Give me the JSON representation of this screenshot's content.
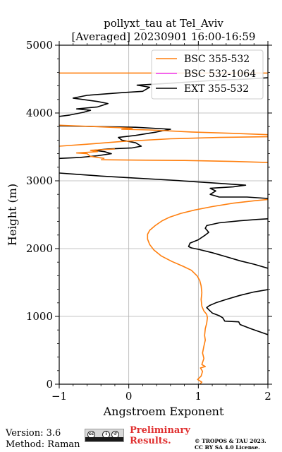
{
  "chart_data": {
    "type": "line",
    "title_line1": "pollyxt_tau at Tel_Aviv",
    "title_line2": "[Averaged] 20230901 16:00-16:59",
    "xlabel": "Angstroem Exponent",
    "ylabel": "Height (m)",
    "xlim": [
      -1,
      2
    ],
    "ylim": [
      0,
      5000
    ],
    "xticks": [
      "−1",
      "0",
      "1",
      "2"
    ],
    "yticks": [
      "0",
      "1000",
      "2000",
      "3000",
      "4000",
      "5000"
    ],
    "grid": true,
    "legend_position": "top-right",
    "series": [
      {
        "name": "BSC 355-532",
        "color": "#ff7f0e",
        "points": [
          [
            1.02,
            0
          ],
          [
            1.05,
            30
          ],
          [
            0.99,
            70
          ],
          [
            1.04,
            120
          ],
          [
            1.06,
            190
          ],
          [
            1.03,
            240
          ],
          [
            1.1,
            260
          ],
          [
            1.05,
            290
          ],
          [
            1.08,
            380
          ],
          [
            1.06,
            460
          ],
          [
            1.08,
            560
          ],
          [
            1.1,
            650
          ],
          [
            1.09,
            720
          ],
          [
            1.1,
            820
          ],
          [
            1.12,
            900
          ],
          [
            1.13,
            980
          ],
          [
            1.12,
            1030
          ],
          [
            1.08,
            1080
          ],
          [
            1.05,
            1150
          ],
          [
            1.04,
            1250
          ],
          [
            1.05,
            1350
          ],
          [
            1.04,
            1450
          ],
          [
            1.02,
            1530
          ],
          [
            0.98,
            1600
          ],
          [
            0.9,
            1680
          ],
          [
            0.78,
            1740
          ],
          [
            0.62,
            1810
          ],
          [
            0.47,
            1890
          ],
          [
            0.36,
            1980
          ],
          [
            0.3,
            2060
          ],
          [
            0.27,
            2140
          ],
          [
            0.27,
            2210
          ],
          [
            0.3,
            2270
          ],
          [
            0.38,
            2340
          ],
          [
            0.48,
            2410
          ],
          [
            0.58,
            2460
          ],
          [
            0.75,
            2520
          ],
          [
            0.95,
            2570
          ],
          [
            1.2,
            2620
          ],
          [
            1.5,
            2670
          ],
          [
            1.8,
            2705
          ],
          [
            2.0,
            2725
          ]
        ]
      },
      {
        "name": "BSC 532-1064",
        "color": "#ee33ee",
        "points": []
      },
      {
        "name": "EXT 355-532",
        "color": "#000000",
        "points": [
          [
            2.0,
            730
          ],
          [
            1.75,
            820
          ],
          [
            1.6,
            880
          ],
          [
            1.58,
            920
          ],
          [
            1.38,
            930
          ],
          [
            1.35,
            980
          ],
          [
            1.3,
            1010
          ],
          [
            1.2,
            1050
          ],
          [
            1.16,
            1090
          ],
          [
            1.12,
            1130
          ],
          [
            1.16,
            1160
          ],
          [
            1.25,
            1200
          ],
          [
            1.4,
            1250
          ],
          [
            1.6,
            1310
          ],
          [
            1.8,
            1360
          ],
          [
            2.0,
            1395
          ]
        ]
      },
      {
        "name": "",
        "color": "#000000",
        "points": [
          [
            2.0,
            1710
          ],
          [
            1.8,
            1770
          ],
          [
            1.6,
            1820
          ],
          [
            1.4,
            1880
          ],
          [
            1.2,
            1940
          ],
          [
            1.0,
            1990
          ],
          [
            0.9,
            2010
          ],
          [
            0.86,
            2030
          ],
          [
            0.88,
            2080
          ],
          [
            1.0,
            2130
          ],
          [
            1.1,
            2200
          ],
          [
            1.15,
            2240
          ],
          [
            1.1,
            2300
          ],
          [
            1.12,
            2340
          ],
          [
            1.3,
            2380
          ],
          [
            1.6,
            2410
          ],
          [
            1.85,
            2430
          ],
          [
            2.0,
            2440
          ]
        ]
      },
      {
        "name": "",
        "color": "#000000",
        "points": [
          [
            2.0,
            2740
          ],
          [
            1.7,
            2760
          ],
          [
            1.3,
            2760
          ],
          [
            1.17,
            2800
          ],
          [
            1.25,
            2850
          ],
          [
            1.17,
            2890
          ],
          [
            1.5,
            2910
          ],
          [
            1.68,
            2935
          ],
          [
            1.2,
            2970
          ],
          [
            0.6,
            3010
          ],
          [
            0.1,
            3040
          ],
          [
            -0.4,
            3070
          ],
          [
            -0.8,
            3100
          ],
          [
            -1.0,
            3115
          ]
        ]
      },
      {
        "name": "",
        "color": "#000000",
        "points": [
          [
            -1.0,
            3330
          ],
          [
            -0.7,
            3345
          ],
          [
            -0.45,
            3370
          ],
          [
            -0.25,
            3400
          ],
          [
            -0.35,
            3430
          ],
          [
            -0.5,
            3450
          ],
          [
            -0.3,
            3470
          ],
          [
            0.05,
            3485
          ],
          [
            0.18,
            3510
          ],
          [
            0.1,
            3560
          ],
          [
            -0.1,
            3600
          ],
          [
            -0.15,
            3640
          ],
          [
            0.1,
            3670
          ],
          [
            0.4,
            3720
          ],
          [
            0.6,
            3760
          ],
          [
            0.1,
            3790
          ],
          [
            -1.0,
            3810
          ]
        ]
      },
      {
        "name": "",
        "color": "#000000",
        "points": [
          [
            -1.0,
            3950
          ],
          [
            -0.85,
            3970
          ],
          [
            -0.65,
            4010
          ],
          [
            -0.55,
            4040
          ],
          [
            -0.75,
            4060
          ],
          [
            -0.45,
            4090
          ],
          [
            -0.3,
            4140
          ],
          [
            -0.45,
            4170
          ],
          [
            -0.8,
            4220
          ],
          [
            -0.6,
            4260
          ],
          [
            -0.1,
            4300
          ],
          [
            0.2,
            4320
          ],
          [
            0.3,
            4380
          ],
          [
            0.12,
            4410
          ],
          [
            0.6,
            4440
          ],
          [
            1.2,
            4480
          ],
          [
            1.7,
            4500
          ],
          [
            2.0,
            4520
          ]
        ]
      },
      {
        "name": "",
        "color": "#ff7f0e",
        "points": [
          [
            2.0,
            3270
          ],
          [
            1.5,
            3285
          ],
          [
            0.8,
            3300
          ],
          [
            0.1,
            3305
          ],
          [
            -0.4,
            3310
          ]
        ]
      },
      {
        "name": "",
        "color": "#ff7f0e",
        "points": [
          [
            -0.35,
            3330
          ],
          [
            -0.55,
            3360
          ],
          [
            -0.6,
            3400
          ],
          [
            -0.75,
            3410
          ],
          [
            -0.6,
            3420
          ],
          [
            -0.45,
            3430
          ],
          [
            -0.55,
            3450
          ],
          [
            -0.2,
            3470
          ]
        ]
      },
      {
        "name": "",
        "color": "#ff7f0e",
        "points": [
          [
            -1.0,
            3510
          ],
          [
            -0.6,
            3540
          ],
          [
            -0.1,
            3580
          ],
          [
            0.6,
            3620
          ],
          [
            1.3,
            3640
          ],
          [
            2.0,
            3650
          ]
        ]
      },
      {
        "name": "",
        "color": "#ff7f0e",
        "points": [
          [
            2.0,
            3680
          ],
          [
            1.5,
            3700
          ],
          [
            0.9,
            3720
          ],
          [
            0.3,
            3750
          ],
          [
            -0.1,
            3760
          ],
          [
            0.05,
            3775
          ],
          [
            -0.5,
            3800
          ],
          [
            -1.0,
            3820
          ]
        ]
      },
      {
        "name": "",
        "color": "#ff7f0e",
        "points": [
          [
            -1.0,
            4590
          ],
          [
            0.0,
            4590
          ],
          [
            1.0,
            4590
          ],
          [
            2.0,
            4590
          ]
        ]
      }
    ]
  },
  "footer": {
    "version": "Version: 3.6",
    "method": "Method: Raman",
    "preliminary_line1": "Preliminary",
    "preliminary_line2": "Results.",
    "copyright_line1": "© TROPOS & TAU 2023.",
    "copyright_line2": "CC BY SA 4.0 License.",
    "badge_icons": [
      "cc-icon",
      "by-icon",
      "sa-icon"
    ]
  }
}
